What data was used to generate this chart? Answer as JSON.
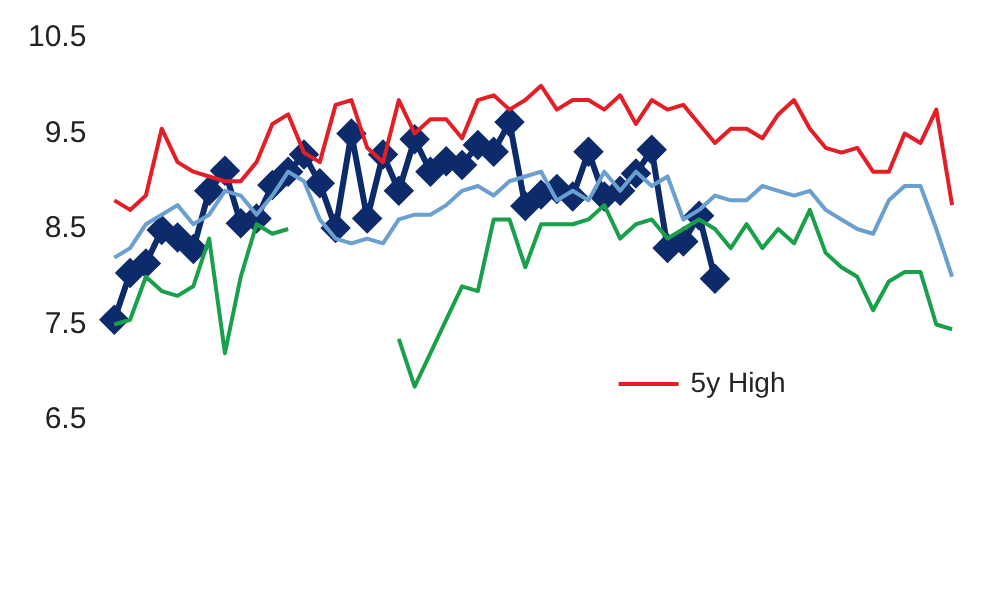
{
  "chart_data": {
    "type": "line",
    "categories": [
      null,
      null,
      null,
      null,
      null,
      null,
      null,
      null,
      null,
      null,
      null,
      null,
      null,
      null,
      null,
      null,
      null,
      null,
      null,
      null,
      null,
      null,
      null,
      null,
      null,
      null,
      null,
      null,
      null,
      null,
      null,
      null,
      null,
      null,
      null,
      null,
      null,
      null,
      null,
      null,
      null,
      null,
      null,
      null,
      null,
      null,
      null,
      null,
      null,
      null,
      null,
      null,
      null,
      null
    ],
    "ylim": [
      6.5,
      10.5
    ],
    "yticks": [
      6.5,
      7.5,
      8.5,
      9.5,
      10.5
    ],
    "grid": false,
    "legend": "bottom right",
    "tick_labels": "y",
    "line_style": "solid",
    "series": [
      {
        "name": "5y High",
        "color": "#e41e26",
        "marker": "none",
        "values": [
          8.8,
          8.7,
          8.85,
          9.55,
          9.2,
          9.1,
          9.05,
          9.0,
          9.0,
          9.2,
          9.6,
          9.7,
          9.3,
          9.2,
          9.8,
          9.85,
          9.35,
          9.2,
          9.85,
          9.5,
          9.65,
          9.65,
          9.45,
          9.85,
          9.9,
          9.75,
          9.85,
          10.0,
          9.75,
          9.85,
          9.85,
          9.75,
          9.9,
          9.6,
          9.85,
          9.75,
          9.8,
          9.6,
          9.4,
          9.55,
          9.55,
          9.45,
          9.7,
          9.85,
          9.55,
          9.35,
          9.3,
          9.35,
          9.1,
          9.1,
          9.5,
          9.4,
          9.75,
          8.75
        ]
      },
      {
        "color": "#6a9fcf",
        "marker": "none",
        "values": [
          8.2,
          8.3,
          8.55,
          8.65,
          8.75,
          8.55,
          8.65,
          8.9,
          8.85,
          8.65,
          8.85,
          9.1,
          9.0,
          8.6,
          8.4,
          8.35,
          8.4,
          8.35,
          8.6,
          8.65,
          8.65,
          8.75,
          8.9,
          8.95,
          8.85,
          9.0,
          9.05,
          9.1,
          8.8,
          8.9,
          8.8,
          9.1,
          8.9,
          9.1,
          8.95,
          9.05,
          8.6,
          8.7,
          8.85,
          8.8,
          8.8,
          8.95,
          8.9,
          8.85,
          8.9,
          8.7,
          8.6,
          8.5,
          8.45,
          8.8,
          8.95,
          8.95,
          8.5,
          8.0
        ]
      },
      {
        "color": "#18a04a",
        "marker": "none",
        "values": [
          7.5,
          7.55,
          8.0,
          7.85,
          7.8,
          7.9,
          8.4,
          7.2,
          8.0,
          8.55,
          8.45,
          8.5,
          null,
          null,
          null,
          null,
          null,
          null,
          7.35,
          6.85,
          7.2,
          7.55,
          7.9,
          7.85,
          8.6,
          8.6,
          8.1,
          8.55,
          8.55,
          8.55,
          8.6,
          8.75,
          8.4,
          8.55,
          8.6,
          8.4,
          8.5,
          8.6,
          8.5,
          8.3,
          8.55,
          8.3,
          8.5,
          8.35,
          8.7,
          8.25,
          8.1,
          8.0,
          7.65,
          7.95,
          8.05,
          8.05,
          7.5,
          7.45
        ]
      },
      {
        "color": "#0d2a6b",
        "marker": "diamond",
        "values": [
          7.55,
          8.04,
          8.14,
          8.49,
          8.41,
          8.29,
          8.9,
          9.11,
          8.56,
          8.61,
          8.96,
          9.1,
          9.28,
          8.98,
          8.51,
          9.5,
          8.61,
          9.28,
          8.9,
          9.44,
          9.1,
          9.21,
          9.17,
          9.38,
          9.31,
          9.62,
          8.74,
          8.86,
          8.92,
          8.84,
          9.31,
          8.84,
          8.9,
          9.08,
          9.33,
          8.3,
          8.37,
          8.64,
          7.98,
          null,
          null,
          null,
          null,
          null,
          null,
          null,
          null,
          null,
          null,
          null,
          null,
          null,
          null,
          null
        ]
      }
    ]
  }
}
